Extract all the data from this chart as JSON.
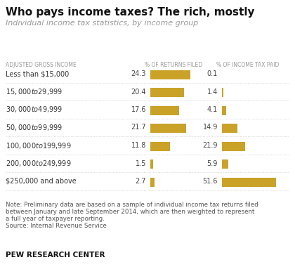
{
  "title": "Who pays income taxes? The rich, mostly",
  "subtitle": "Individual income tax statistics, by income group",
  "col1_header": "ADJUSTED GROSS INCOME",
  "col2_header": "% OF RETURNS FILED",
  "col3_header": "% OF INCOME TAX PAID",
  "categories": [
    "Less than $15,000",
    "$15,000 to $29,999",
    "$30,000 to $49,999",
    "$50,000 to $99,999",
    "$100,000 to $199,999",
    "$200,000 to $249,999",
    "$250,000 and above"
  ],
  "returns_filed": [
    24.3,
    20.4,
    17.6,
    21.7,
    11.8,
    1.5,
    2.7
  ],
  "income_tax_paid": [
    0.1,
    1.4,
    4.1,
    14.9,
    21.9,
    5.9,
    51.6
  ],
  "bar_color": "#C9A227",
  "max_returns": 30,
  "max_tax": 60,
  "note_line1": "Note: Preliminary data are based on a sample of individual income tax returns filed",
  "note_line2": "between January and late September 2014, which are then weighted to represent",
  "note_line3": "a full year of taxpayer reporting.",
  "note_line4": "Source: Internal Revenue Service",
  "footer": "PEW RESEARCH CENTER",
  "bg_color": "#ffffff"
}
